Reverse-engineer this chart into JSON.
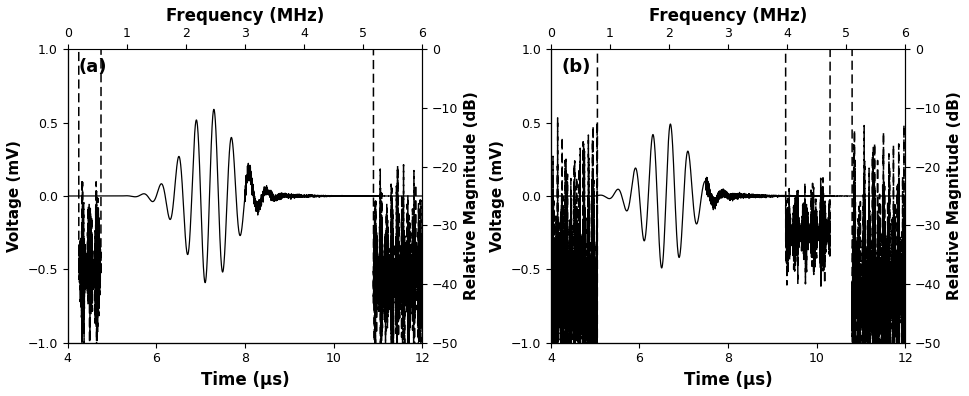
{
  "xlim_time": [
    4,
    12
  ],
  "ylim_voltage": [
    -1,
    1
  ],
  "xlim_freq": [
    0,
    6
  ],
  "ylim_db": [
    -50,
    0
  ],
  "time_xlabel": "Time (μs)",
  "freq_xlabel": "Frequency (MHz)",
  "voltage_ylabel": "Voltage (mV)",
  "db_ylabel": "Relative Magnitude (dB)",
  "label_a": "(a)",
  "label_b": "(b)",
  "background_color": "#ffffff",
  "line_color": "#000000",
  "fontsize_label": 11,
  "fontsize_title": 12,
  "fontsize_tick": 9
}
